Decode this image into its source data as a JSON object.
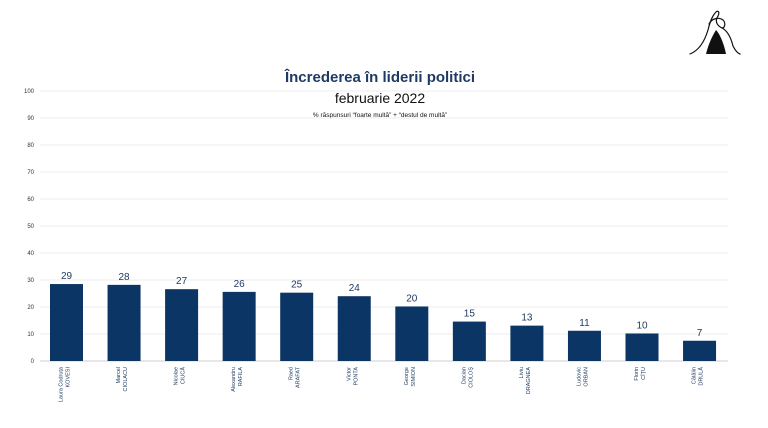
{
  "chart_data": {
    "type": "bar",
    "title": "Încrederea în liderii politici",
    "subtitle": "februarie 2022",
    "note": "% răspunsuri “foarte multă” + “destul de multă”",
    "xlabel": "",
    "ylabel": "",
    "ylim": [
      0,
      100
    ],
    "yticks": [
      0,
      10,
      20,
      30,
      40,
      50,
      60,
      70,
      80,
      90,
      100
    ],
    "grid": true,
    "legend": "none",
    "categories": [
      [
        "Laura Codruța",
        "KOVESI"
      ],
      [
        "Marcel",
        "CIOLACU"
      ],
      [
        "Nicolae",
        "CIUCĂ"
      ],
      [
        "Alexandru",
        "RAFILA"
      ],
      [
        "Raed",
        "ARAFAT"
      ],
      [
        "Victor",
        "PONTA"
      ],
      [
        "George",
        "SIMION"
      ],
      [
        "Dacian",
        "CIOLOȘ"
      ],
      [
        "Liviu",
        "DRAGNEA"
      ],
      [
        "Ludovic",
        "ORBAN"
      ],
      [
        "Florin",
        "CÎȚU"
      ],
      [
        "Cătălin",
        "DRULĂ"
      ]
    ],
    "values": [
      29,
      28,
      27,
      26,
      25,
      24,
      20,
      15,
      13,
      11,
      10,
      7
    ],
    "bar_values": [
      28.5,
      28.2,
      26.6,
      25.6,
      25.3,
      24.0,
      20.2,
      14.6,
      13.1,
      11.2,
      10.2,
      7.5
    ],
    "colors": {
      "bar": "#0b3564",
      "title": "#1f3b63",
      "grid": "#e6e6e6"
    }
  },
  "logo": {
    "icon": "mountain-figure-logo"
  }
}
